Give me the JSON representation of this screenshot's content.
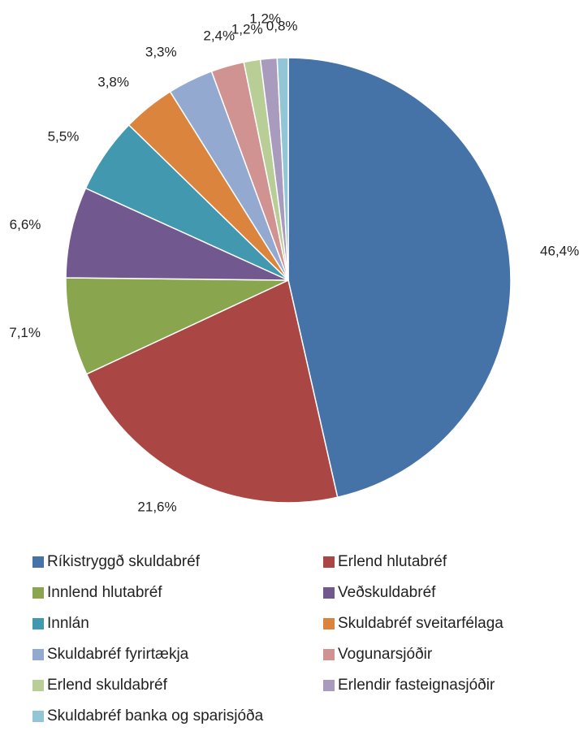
{
  "chart_data": {
    "type": "pie",
    "categories": [
      "Ríkistryggð skuldabréf",
      "Erlend hlutabréf",
      "Innlend hlutabréf",
      "Veðskuldabréf",
      "Innlán",
      "Skuldabréf sveitarfélaga",
      "Skuldabréf fyrirtækja",
      "Vogunarsjóðir",
      "Erlend skuldabréf",
      "Erlendir fasteignasjóðir",
      "Skuldabréf banka og sparisjóða"
    ],
    "values": [
      46.4,
      21.6,
      7.1,
      6.6,
      5.5,
      3.8,
      3.3,
      2.4,
      1.2,
      1.2,
      0.8
    ],
    "value_labels": [
      "46,4%",
      "21,6%",
      "7,1%",
      "6,6%",
      "5,5%",
      "3,8%",
      "3,3%",
      "2,4%",
      "1,2%",
      "1,2%",
      "0,8%"
    ],
    "colors": [
      "#4572a7",
      "#aa4643",
      "#89a54e",
      "#71588f",
      "#4198af",
      "#db843d",
      "#93a9cf",
      "#d19392",
      "#b9cd96",
      "#a99bbd",
      "#92c5d6"
    ],
    "legend": "bottom"
  }
}
